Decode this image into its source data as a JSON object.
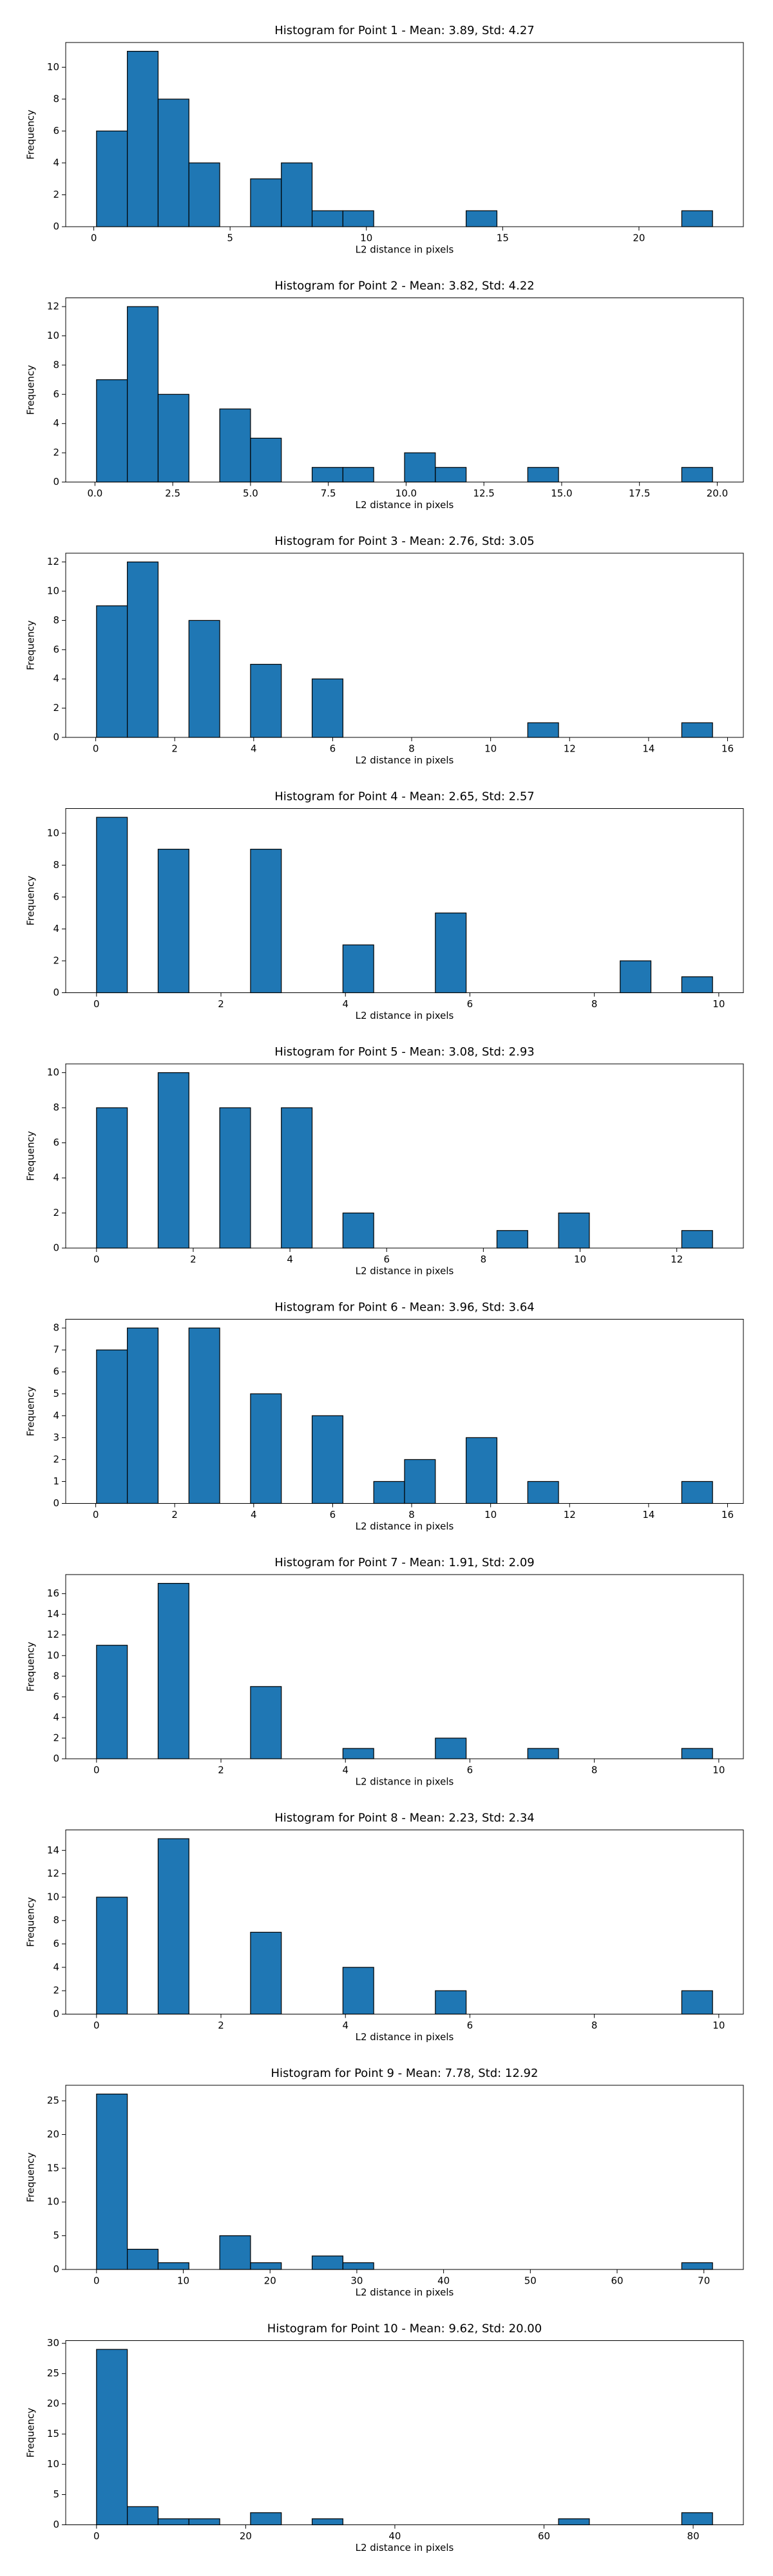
{
  "chart_data": [
    {
      "type": "histogram",
      "title": "Histogram for Point 1 - Mean: 3.89, Std: 4.27",
      "xlabel": "L2 distance in pixels",
      "ylabel": "Frequency",
      "color": "#1f77b4",
      "edgecolor": "#000000",
      "bins": [
        0.1,
        1.23,
        2.36,
        3.49,
        4.62,
        5.75,
        6.88,
        8.01,
        9.14,
        10.27,
        11.4,
        12.53,
        13.66,
        14.79,
        15.92,
        17.05,
        18.18,
        19.31,
        20.44,
        21.57,
        22.7
      ],
      "values": [
        6,
        11,
        8,
        4,
        0,
        3,
        4,
        1,
        1,
        0,
        0,
        0,
        1,
        0,
        0,
        0,
        0,
        0,
        0,
        1
      ],
      "xlim": [
        -1.03,
        23.83
      ],
      "ylim": [
        0,
        11.55
      ],
      "xticks": [
        0,
        5,
        10,
        15,
        20
      ],
      "yticks": [
        0,
        2,
        4,
        6,
        8,
        10
      ]
    },
    {
      "type": "histogram",
      "title": "Histogram for Point 2 - Mean: 3.82, Std: 4.22",
      "xlabel": "L2 distance in pixels",
      "ylabel": "Frequency",
      "color": "#1f77b4",
      "edgecolor": "#000000",
      "bins": [
        0.05,
        1.04,
        2.03,
        3.02,
        4.01,
        5.0,
        5.99,
        6.98,
        7.97,
        8.96,
        9.95,
        10.94,
        11.93,
        12.92,
        13.91,
        14.9,
        15.89,
        16.88,
        17.87,
        18.86,
        19.85
      ],
      "values": [
        7,
        12,
        6,
        0,
        5,
        3,
        0,
        1,
        1,
        0,
        2,
        1,
        0,
        0,
        1,
        0,
        0,
        0,
        0,
        1
      ],
      "xlim": [
        -0.94,
        20.84
      ],
      "ylim": [
        0,
        12.6
      ],
      "xticks": [
        {
          "value": 0,
          "label": "0.0"
        },
        2.5,
        {
          "value": 5,
          "label": "5.0"
        },
        7.5,
        {
          "value": 10,
          "label": "10.0"
        },
        12.5,
        {
          "value": 15,
          "label": "15.0"
        },
        17.5,
        {
          "value": 20,
          "label": "20.0"
        }
      ],
      "yticks": [
        0,
        2,
        4,
        6,
        8,
        10,
        12
      ]
    },
    {
      "type": "histogram",
      "title": "Histogram for Point 3 - Mean: 2.76, Std: 3.05",
      "xlabel": "L2 distance in pixels",
      "ylabel": "Frequency",
      "color": "#1f77b4",
      "edgecolor": "#000000",
      "bins": [
        0.02,
        0.8,
        1.58,
        2.36,
        3.14,
        3.92,
        4.7,
        5.48,
        6.26,
        7.04,
        7.82,
        8.6,
        9.38,
        10.16,
        10.94,
        11.72,
        12.5,
        13.28,
        14.06,
        14.84,
        15.62
      ],
      "values": [
        9,
        12,
        0,
        8,
        0,
        5,
        0,
        4,
        0,
        0,
        0,
        0,
        0,
        0,
        1,
        0,
        0,
        0,
        0,
        1
      ],
      "xlim": [
        -0.76,
        16.4
      ],
      "ylim": [
        0,
        12.6
      ],
      "xticks": [
        0,
        2,
        4,
        6,
        8,
        10,
        12,
        14,
        16
      ],
      "yticks": [
        0,
        2,
        4,
        6,
        8,
        10,
        12
      ]
    },
    {
      "type": "histogram",
      "title": "Histogram for Point 4 - Mean: 2.65, Std: 2.57",
      "xlabel": "L2 distance in pixels",
      "ylabel": "Frequency",
      "color": "#1f77b4",
      "edgecolor": "#000000",
      "bins": [
        0,
        0.495,
        0.99,
        1.485,
        1.98,
        2.475,
        2.97,
        3.465,
        3.96,
        4.455,
        4.95,
        5.445,
        5.94,
        6.435,
        6.93,
        7.425,
        7.92,
        8.415,
        8.91,
        9.405,
        9.9
      ],
      "values": [
        11,
        0,
        9,
        0,
        0,
        9,
        0,
        0,
        3,
        0,
        0,
        5,
        0,
        0,
        0,
        0,
        0,
        2,
        0,
        1
      ],
      "xlim": [
        -0.495,
        10.395
      ],
      "ylim": [
        0,
        11.55
      ],
      "xticks": [
        0,
        2,
        4,
        6,
        8,
        10
      ],
      "yticks": [
        0,
        2,
        4,
        6,
        8,
        10
      ]
    },
    {
      "type": "histogram",
      "title": "Histogram for Point 5 - Mean: 3.08, Std: 2.93",
      "xlabel": "L2 distance in pixels",
      "ylabel": "Frequency",
      "color": "#1f77b4",
      "edgecolor": "#000000",
      "bins": [
        0,
        0.637,
        1.274,
        1.911,
        2.548,
        3.185,
        3.822,
        4.459,
        5.096,
        5.733,
        6.37,
        7.007,
        7.644,
        8.281,
        8.918,
        9.555,
        10.192,
        10.829,
        11.466,
        12.103,
        12.74
      ],
      "values": [
        8,
        0,
        10,
        0,
        8,
        0,
        8,
        0,
        2,
        0,
        0,
        0,
        0,
        1,
        0,
        2,
        0,
        0,
        0,
        1
      ],
      "xlim": [
        -0.637,
        13.377
      ],
      "ylim": [
        0,
        10.5
      ],
      "xticks": [
        0,
        2,
        4,
        6,
        8,
        10,
        12
      ],
      "yticks": [
        0,
        2,
        4,
        6,
        8,
        10
      ]
    },
    {
      "type": "histogram",
      "title": "Histogram for Point 6 - Mean: 3.96, Std: 3.64",
      "xlabel": "L2 distance in pixels",
      "ylabel": "Frequency",
      "color": "#1f77b4",
      "edgecolor": "#000000",
      "bins": [
        0.02,
        0.8,
        1.58,
        2.36,
        3.14,
        3.92,
        4.7,
        5.48,
        6.26,
        7.04,
        7.82,
        8.6,
        9.38,
        10.16,
        10.94,
        11.72,
        12.5,
        13.28,
        14.06,
        14.84,
        15.62
      ],
      "values": [
        7,
        8,
        0,
        8,
        0,
        5,
        0,
        4,
        0,
        1,
        2,
        0,
        3,
        0,
        1,
        0,
        0,
        0,
        0,
        1
      ],
      "xlim": [
        -0.76,
        16.4
      ],
      "ylim": [
        0,
        8.4
      ],
      "xticks": [
        0,
        2,
        4,
        6,
        8,
        10,
        12,
        14,
        16
      ],
      "yticks": [
        0,
        1,
        2,
        3,
        4,
        5,
        6,
        7,
        8
      ]
    },
    {
      "type": "histogram",
      "title": "Histogram for Point 7 - Mean: 1.91, Std: 2.09",
      "xlabel": "L2 distance in pixels",
      "ylabel": "Frequency",
      "color": "#1f77b4",
      "edgecolor": "#000000",
      "bins": [
        0,
        0.495,
        0.99,
        1.485,
        1.98,
        2.475,
        2.97,
        3.465,
        3.96,
        4.455,
        4.95,
        5.445,
        5.94,
        6.435,
        6.93,
        7.425,
        7.92,
        8.415,
        8.91,
        9.405,
        9.9
      ],
      "values": [
        11,
        0,
        17,
        0,
        0,
        7,
        0,
        0,
        1,
        0,
        0,
        2,
        0,
        0,
        1,
        0,
        0,
        0,
        0,
        1
      ],
      "xlim": [
        -0.495,
        10.395
      ],
      "ylim": [
        0,
        17.85
      ],
      "xticks": [
        0,
        2,
        4,
        6,
        8,
        10
      ],
      "yticks": [
        0,
        2,
        4,
        6,
        8,
        10,
        12,
        14,
        16
      ]
    },
    {
      "type": "histogram",
      "title": "Histogram for Point 8 - Mean: 2.23, Std: 2.34",
      "xlabel": "L2 distance in pixels",
      "ylabel": "Frequency",
      "color": "#1f77b4",
      "edgecolor": "#000000",
      "bins": [
        0,
        0.495,
        0.99,
        1.485,
        1.98,
        2.475,
        2.97,
        3.465,
        3.96,
        4.455,
        4.95,
        5.445,
        5.94,
        6.435,
        6.93,
        7.425,
        7.92,
        8.415,
        8.91,
        9.405,
        9.9
      ],
      "values": [
        10,
        0,
        15,
        0,
        0,
        7,
        0,
        0,
        4,
        0,
        0,
        2,
        0,
        0,
        0,
        0,
        0,
        0,
        0,
        2
      ],
      "xlim": [
        -0.495,
        10.395
      ],
      "ylim": [
        0,
        15.75
      ],
      "xticks": [
        0,
        2,
        4,
        6,
        8,
        10
      ],
      "yticks": [
        0,
        2,
        4,
        6,
        8,
        10,
        12,
        14
      ]
    },
    {
      "type": "histogram",
      "title": "Histogram for Point 9 - Mean: 7.78, Std: 12.92",
      "xlabel": "L2 distance in pixels",
      "ylabel": "Frequency",
      "color": "#1f77b4",
      "edgecolor": "#000000",
      "bins": [
        0,
        3.55,
        7.1,
        10.65,
        14.2,
        17.75,
        21.3,
        24.85,
        28.4,
        31.95,
        35.5,
        39.05,
        42.6,
        46.15,
        49.7,
        53.25,
        56.8,
        60.35,
        63.9,
        67.45,
        71
      ],
      "values": [
        26,
        3,
        1,
        0,
        5,
        1,
        0,
        2,
        1,
        0,
        0,
        0,
        0,
        0,
        0,
        0,
        0,
        0,
        0,
        1
      ],
      "xlim": [
        -3.55,
        74.55
      ],
      "ylim": [
        0,
        27.3
      ],
      "xticks": [
        0,
        10,
        20,
        30,
        40,
        50,
        60,
        70
      ],
      "yticks": [
        0,
        5,
        10,
        15,
        20,
        25
      ]
    },
    {
      "type": "histogram",
      "title": "Histogram for Point 10 - Mean: 9.62, Std: 20.00",
      "xlabel": "L2 distance in pixels",
      "ylabel": "Frequency",
      "color": "#1f77b4",
      "edgecolor": "#000000",
      "bins": [
        0,
        4.13,
        8.26,
        12.39,
        16.52,
        20.65,
        24.78,
        28.91,
        33.04,
        37.17,
        41.3,
        45.43,
        49.56,
        53.69,
        57.82,
        61.95,
        66.08,
        70.21,
        74.34,
        78.47,
        82.6
      ],
      "values": [
        29,
        3,
        1,
        1,
        0,
        2,
        0,
        1,
        0,
        0,
        0,
        0,
        0,
        0,
        0,
        1,
        0,
        0,
        0,
        2
      ],
      "xlim": [
        -4.13,
        86.73
      ],
      "ylim": [
        0,
        30.45
      ],
      "xticks": [
        0,
        20,
        40,
        60,
        80
      ],
      "yticks": [
        0,
        5,
        10,
        15,
        20,
        25,
        30
      ]
    }
  ]
}
